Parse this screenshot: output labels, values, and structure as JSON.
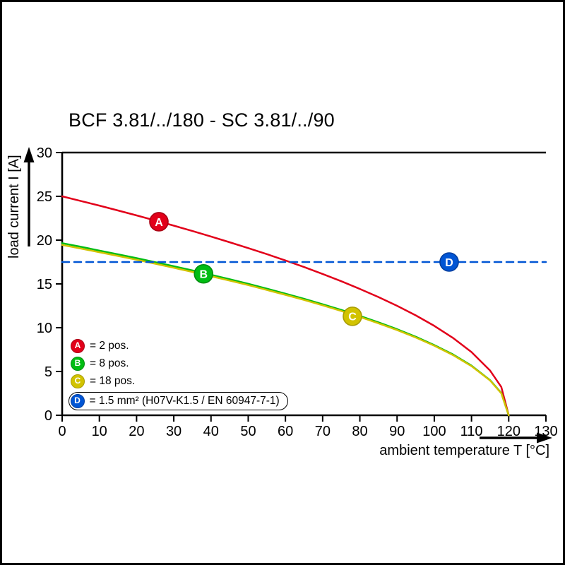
{
  "chart_data": {
    "type": "line",
    "title": "BCF 3.81/../180 - SC 3.81/../90",
    "xlabel": "ambient temperature T [°C]",
    "ylabel": "load current I [A]",
    "xlim": [
      0,
      130
    ],
    "ylim": [
      0,
      30
    ],
    "x_ticks": [
      0,
      10,
      20,
      30,
      40,
      50,
      60,
      70,
      80,
      90,
      100,
      110,
      120,
      130
    ],
    "y_ticks": [
      0,
      5,
      10,
      15,
      20,
      25,
      30
    ],
    "grid": false,
    "legend_position": "inside bottom-left",
    "series": [
      {
        "id": "A",
        "label": "= 2 pos.",
        "color": "#e2001a",
        "stroke_dark": "#aa0014",
        "line_style": "solid",
        "marker": {
          "x": 26,
          "y": 22.1
        },
        "points": [
          [
            0,
            25
          ],
          [
            5,
            24.47
          ],
          [
            10,
            23.94
          ],
          [
            15,
            23.39
          ],
          [
            20,
            22.82
          ],
          [
            25,
            22.24
          ],
          [
            30,
            21.65
          ],
          [
            35,
            21.04
          ],
          [
            40,
            20.41
          ],
          [
            45,
            19.76
          ],
          [
            50,
            19.09
          ],
          [
            55,
            18.4
          ],
          [
            60,
            17.68
          ],
          [
            65,
            16.93
          ],
          [
            70,
            16.14
          ],
          [
            75,
            15.31
          ],
          [
            80,
            14.43
          ],
          [
            85,
            13.5
          ],
          [
            90,
            12.5
          ],
          [
            95,
            11.41
          ],
          [
            100,
            10.21
          ],
          [
            105,
            8.84
          ],
          [
            110,
            7.22
          ],
          [
            115,
            5.1
          ],
          [
            118,
            3.23
          ],
          [
            120,
            0
          ]
        ]
      },
      {
        "id": "B",
        "label": "= 8 pos.",
        "color": "#00bd13",
        "stroke_dark": "#008c0e",
        "line_style": "solid",
        "marker": {
          "x": 38,
          "y": 16.15
        },
        "points": [
          [
            0,
            19.65
          ],
          [
            5,
            19.24
          ],
          [
            10,
            18.81
          ],
          [
            15,
            18.38
          ],
          [
            20,
            17.94
          ],
          [
            25,
            17.48
          ],
          [
            30,
            17.02
          ],
          [
            35,
            16.54
          ],
          [
            40,
            16.04
          ],
          [
            45,
            15.53
          ],
          [
            50,
            15.01
          ],
          [
            55,
            14.46
          ],
          [
            60,
            13.89
          ],
          [
            65,
            13.3
          ],
          [
            70,
            12.68
          ],
          [
            75,
            12.03
          ],
          [
            80,
            11.35
          ],
          [
            85,
            10.61
          ],
          [
            90,
            9.83
          ],
          [
            95,
            8.97
          ],
          [
            100,
            8.02
          ],
          [
            105,
            6.95
          ],
          [
            110,
            5.67
          ],
          [
            115,
            4.01
          ],
          [
            118,
            2.54
          ],
          [
            120,
            0
          ]
        ]
      },
      {
        "id": "C",
        "label": "= 18 pos.",
        "color": "#d2c300",
        "stroke_dark": "#a89c00",
        "line_style": "solid",
        "marker": {
          "x": 78,
          "y": 11.3
        },
        "points": [
          [
            0,
            19.45
          ],
          [
            5,
            19.04
          ],
          [
            10,
            18.62
          ],
          [
            15,
            18.19
          ],
          [
            20,
            17.76
          ],
          [
            25,
            17.31
          ],
          [
            30,
            16.84
          ],
          [
            35,
            16.37
          ],
          [
            40,
            15.88
          ],
          [
            45,
            15.38
          ],
          [
            50,
            14.86
          ],
          [
            55,
            14.31
          ],
          [
            60,
            13.75
          ],
          [
            65,
            13.17
          ],
          [
            70,
            12.56
          ],
          [
            75,
            11.91
          ],
          [
            80,
            11.23
          ],
          [
            85,
            10.5
          ],
          [
            90,
            9.73
          ],
          [
            95,
            8.88
          ],
          [
            100,
            7.94
          ],
          [
            105,
            6.88
          ],
          [
            110,
            5.61
          ],
          [
            115,
            3.97
          ],
          [
            118,
            2.51
          ],
          [
            120,
            0
          ]
        ]
      },
      {
        "id": "D",
        "label": "= 1.5 mm² (H07V-K1.5 / EN 60947-7-1)",
        "color": "#0055d4",
        "stroke_dark": "#003e9e",
        "line_style": "dashed",
        "legend_boxed": true,
        "marker": {
          "x": 104,
          "y": 17.5
        },
        "points": [
          [
            0,
            17.5
          ],
          [
            130,
            17.5
          ]
        ]
      }
    ]
  }
}
